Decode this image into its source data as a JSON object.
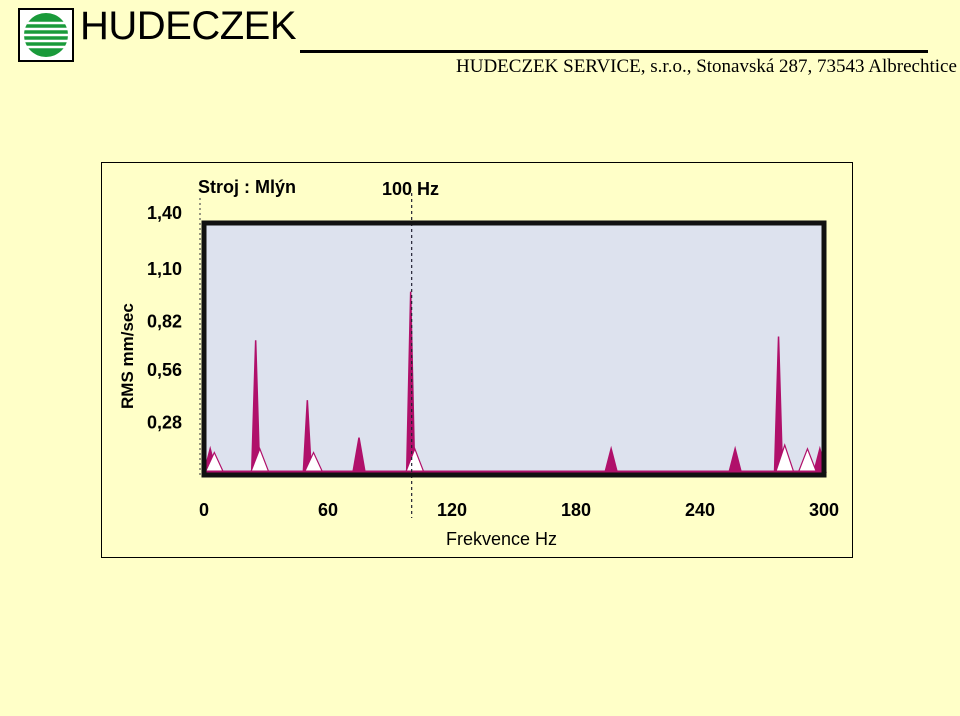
{
  "header": {
    "brand": "HUDECZEK",
    "address": "HUDECZEK SERVICE, s.r.o., Stonavská 287, 73543 Albrechtice",
    "logo_color": "#1a9a3a"
  },
  "chart_data": {
    "type": "line",
    "title": "Stroj : Mlýn",
    "annotation": "100 Hz",
    "annotation_x": 100,
    "xlabel": "Frekvence Hz",
    "ylabel": "RMS mm/sec",
    "xlim": [
      0,
      300
    ],
    "ylim": [
      0,
      1.4
    ],
    "x_ticks": [
      0,
      60,
      120,
      180,
      240,
      300
    ],
    "x_tick_labels": [
      "0",
      "60",
      "120",
      "180",
      "240",
      "300"
    ],
    "y_ticks": [
      0.28,
      0.56,
      0.82,
      1.1,
      1.4
    ],
    "y_tick_labels": [
      "0,28",
      "0,56",
      "0,82",
      "1,10",
      "1,40"
    ],
    "series": [
      {
        "name": "",
        "color": "#b0106a",
        "peaks": [
          {
            "x": 3,
            "y": 0.14
          },
          {
            "x": 25,
            "y": 0.72
          },
          {
            "x": 50,
            "y": 0.4
          },
          {
            "x": 75,
            "y": 0.2
          },
          {
            "x": 100,
            "y": 0.98
          },
          {
            "x": 197,
            "y": 0.14
          },
          {
            "x": 257,
            "y": 0.14
          },
          {
            "x": 278,
            "y": 0.74
          },
          {
            "x": 298,
            "y": 0.14
          }
        ]
      },
      {
        "name": "",
        "color": "#ffffff",
        "peaks": [
          {
            "x": 5,
            "y": 0.12
          },
          {
            "x": 27,
            "y": 0.14
          },
          {
            "x": 53,
            "y": 0.12
          },
          {
            "x": 102,
            "y": 0.14
          },
          {
            "x": 281,
            "y": 0.16
          },
          {
            "x": 292,
            "y": 0.14
          }
        ]
      }
    ],
    "colors": {
      "plot_bg": "#dde2ee",
      "frame": "#111111",
      "baseline": "#b0106a"
    }
  }
}
